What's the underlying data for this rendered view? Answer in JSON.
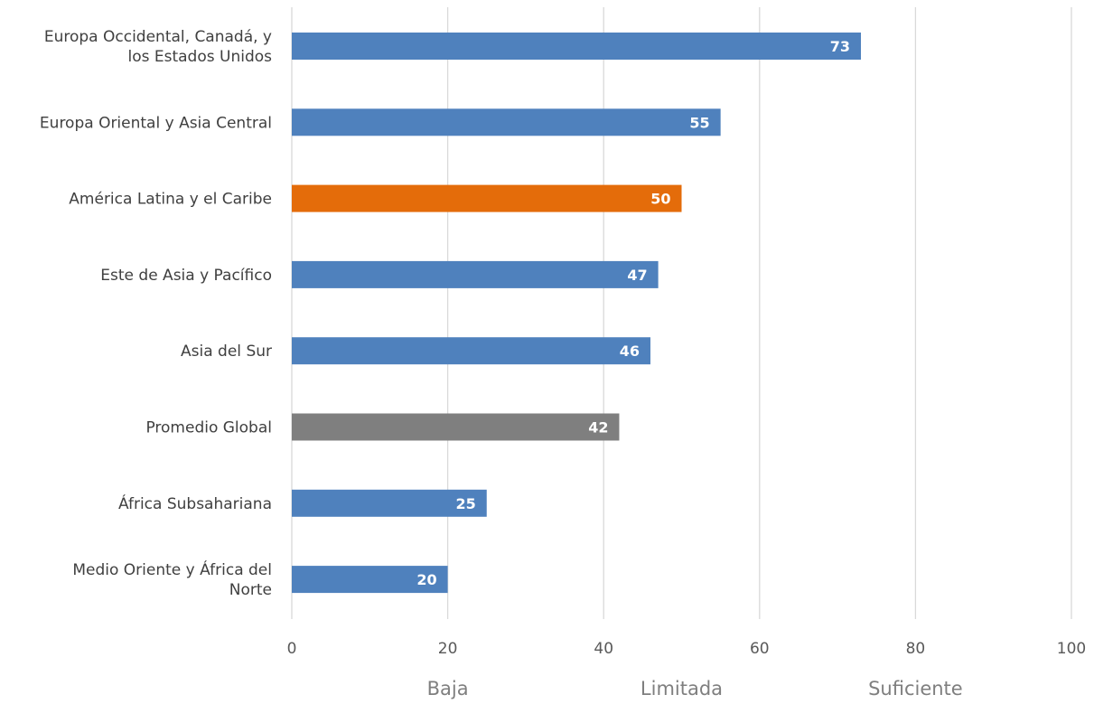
{
  "chart_data": {
    "type": "bar",
    "orientation": "horizontal",
    "categories": [
      "Europa Occidental, Canadá, y los Estados Unidos",
      "Europa Oriental y Asia Central",
      "América Latina y el Caribe",
      "Este de Asia y Pacífico",
      "Asia del Sur",
      "Promedio Global",
      "África Subsahariana",
      "Medio Oriente y África del Norte"
    ],
    "category_lines": [
      [
        "Europa Occidental, Canadá, y",
        "los Estados Unidos"
      ],
      [
        "Europa Oriental y Asia Central"
      ],
      [
        "América Latina y el Caribe"
      ],
      [
        "Este de Asia y Pacífico"
      ],
      [
        "Asia del Sur"
      ],
      [
        "Promedio Global"
      ],
      [
        "África Subsahariana"
      ],
      [
        "Medio Oriente y África del",
        "Norte"
      ]
    ],
    "values": [
      73,
      55,
      50,
      47,
      46,
      42,
      25,
      20
    ],
    "bar_colors": [
      "#4f81bd",
      "#4f81bd",
      "#e46c0a",
      "#4f81bd",
      "#4f81bd",
      "#7f7f7f",
      "#4f81bd",
      "#4f81bd"
    ],
    "xlim": [
      0,
      100
    ],
    "xticks": [
      0,
      20,
      40,
      60,
      80,
      100
    ],
    "grid": true,
    "bands": [
      {
        "label": "Baja",
        "from": 0,
        "to": 40
      },
      {
        "label": "Limitada",
        "from": 40,
        "to": 60
      },
      {
        "label": "Suficiente",
        "from": 60,
        "to": 100
      }
    ],
    "title": "",
    "xlabel": "",
    "ylabel": ""
  },
  "colors": {
    "grid": "#d9d9d9",
    "value_label": "#ffffff"
  }
}
